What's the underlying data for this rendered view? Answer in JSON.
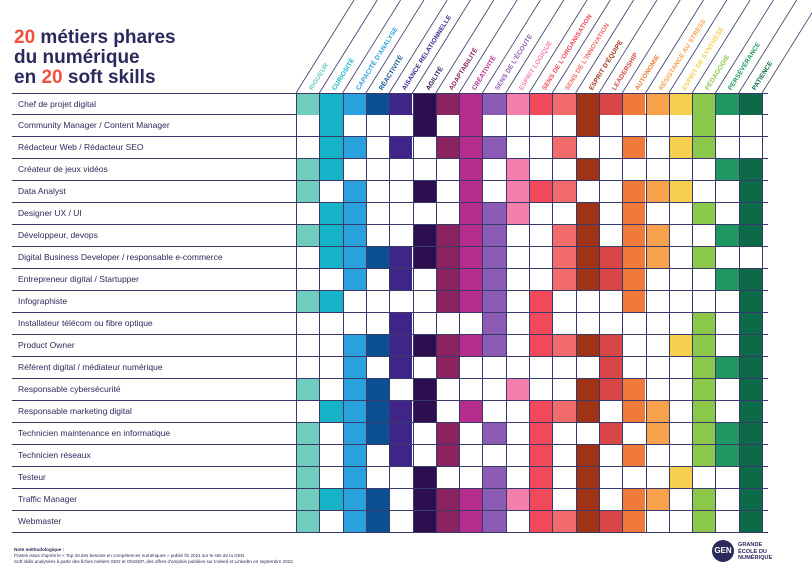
{
  "title": {
    "line1_num": "20",
    "line1_rest": " métiers phares",
    "line2": "du numérique",
    "line3_pre": "en ",
    "line3_num": "20",
    "line3_rest": " soft skills"
  },
  "colors": {
    "title_text": "#2b2a5c",
    "title_accent": "#f0503d"
  },
  "skills": [
    {
      "label": "Rigueur",
      "color": "#6ecdbc"
    },
    {
      "label": "Curiosité",
      "color": "#14b3c8"
    },
    {
      "label": "Capacité d'analyse",
      "color": "#2aa0dd"
    },
    {
      "label": "Réactivité",
      "color": "#0d4f93"
    },
    {
      "label": "Aisance relationnelle",
      "color": "#3e2587"
    },
    {
      "label": "Agilité",
      "color": "#2d0f4f"
    },
    {
      "label": "Adaptabilité",
      "color": "#8a2360"
    },
    {
      "label": "Créativité",
      "color": "#b52e8e"
    },
    {
      "label": "Sens de l'écoute",
      "color": "#8c5cb4"
    },
    {
      "label": "Esprit logique",
      "color": "#f37fad"
    },
    {
      "label": "Sens de l'organisation",
      "color": "#f0495a"
    },
    {
      "label": "Sens de l'innovation",
      "color": "#f26b6b"
    },
    {
      "label": "Esprit d'équipe",
      "color": "#a03316"
    },
    {
      "label": "Leadership",
      "color": "#d84646"
    },
    {
      "label": "Autonomie",
      "color": "#f07a3a"
    },
    {
      "label": "Résistance au stress",
      "color": "#f8a14a"
    },
    {
      "label": "Esprit de synthèse",
      "color": "#f7cf4f"
    },
    {
      "label": "Pédagogie",
      "color": "#8cc84b"
    },
    {
      "label": "Persévérance",
      "color": "#1e9860"
    },
    {
      "label": "Patience",
      "color": "#0c6a48"
    }
  ],
  "jobs": [
    {
      "label": "Chef de projet digital",
      "skills": [
        0,
        1,
        2,
        3,
        4,
        5,
        6,
        7,
        8,
        9,
        10,
        11,
        12,
        13,
        14,
        15,
        16,
        17,
        18,
        19
      ]
    },
    {
      "label": "Community Manager / Content Manager",
      "skills": [
        1,
        5,
        7,
        12,
        17
      ]
    },
    {
      "label": "Rédacteur Web / Rédacteur SEO",
      "skills": [
        1,
        2,
        4,
        6,
        7,
        8,
        11,
        14,
        16,
        17
      ]
    },
    {
      "label": "Créateur de jeux vidéos",
      "skills": [
        0,
        1,
        7,
        9,
        12,
        18,
        19
      ]
    },
    {
      "label": "Data Analyst",
      "skills": [
        0,
        2,
        5,
        7,
        9,
        10,
        11,
        14,
        15,
        16,
        19
      ]
    },
    {
      "label": "Designer UX / UI",
      "skills": [
        1,
        2,
        7,
        8,
        9,
        12,
        14,
        17,
        19
      ]
    },
    {
      "label": "Développeur, devops",
      "skills": [
        0,
        1,
        2,
        5,
        6,
        7,
        8,
        11,
        12,
        14,
        15,
        18,
        19
      ]
    },
    {
      "label": "Digital Business Developer / responsable e-commerce",
      "skills": [
        1,
        2,
        3,
        4,
        5,
        6,
        7,
        8,
        11,
        12,
        13,
        14,
        15,
        17
      ]
    },
    {
      "label": "Entrepreneur digital / Startupper",
      "skills": [
        2,
        4,
        6,
        7,
        8,
        11,
        12,
        13,
        14,
        18,
        19
      ]
    },
    {
      "label": "Infographiste",
      "skills": [
        0,
        1,
        6,
        7,
        8,
        10,
        14,
        19
      ]
    },
    {
      "label": "Installateur télécom ou  fibre optique",
      "skills": [
        4,
        8,
        10,
        17,
        19
      ]
    },
    {
      "label": "Product Owner",
      "skills": [
        2,
        3,
        4,
        5,
        6,
        7,
        8,
        10,
        11,
        12,
        13,
        16,
        17,
        19
      ]
    },
    {
      "label": "Référent digital / médiateur numérique",
      "skills": [
        2,
        4,
        6,
        13,
        17,
        18,
        19
      ]
    },
    {
      "label": "Responsable cybersécurité",
      "skills": [
        0,
        2,
        3,
        5,
        9,
        12,
        13,
        14,
        17,
        19
      ]
    },
    {
      "label": "Responsable marketing digital",
      "skills": [
        1,
        2,
        3,
        4,
        5,
        7,
        10,
        11,
        12,
        14,
        15,
        17,
        19
      ]
    },
    {
      "label": "Technicien maintenance en informatique",
      "skills": [
        0,
        2,
        3,
        4,
        6,
        8,
        10,
        13,
        15,
        17,
        18,
        19
      ]
    },
    {
      "label": "Technicien réseaux",
      "skills": [
        0,
        2,
        4,
        6,
        10,
        12,
        14,
        17,
        18,
        19
      ]
    },
    {
      "label": "Testeur",
      "skills": [
        0,
        2,
        5,
        8,
        10,
        12,
        16,
        19
      ]
    },
    {
      "label": "Traffic Manager",
      "skills": [
        0,
        1,
        2,
        3,
        5,
        6,
        7,
        8,
        9,
        10,
        12,
        14,
        15,
        17,
        19
      ]
    },
    {
      "label": "Webmaster",
      "skills": [
        0,
        2,
        3,
        5,
        6,
        7,
        8,
        10,
        11,
        12,
        13,
        14,
        17,
        19
      ]
    }
  ],
  "note": {
    "title": "Note méthodologique :",
    "line1": "Postes issus d'après le « Top 40 des besoins en compétences numériques » publié fin 2021 sur le site de la GEN.",
    "line2": "Soft skills analysées à partir des fiches métiers GEN et ONISEP, des offres d'emplois publiées sur Indeed et LinkedIn en septembre 2022."
  },
  "logo": {
    "badge": "GEN",
    "line1": "GRANDE",
    "line2": "ÉCOLE DU",
    "line3": "NUMÉRIQUE"
  }
}
